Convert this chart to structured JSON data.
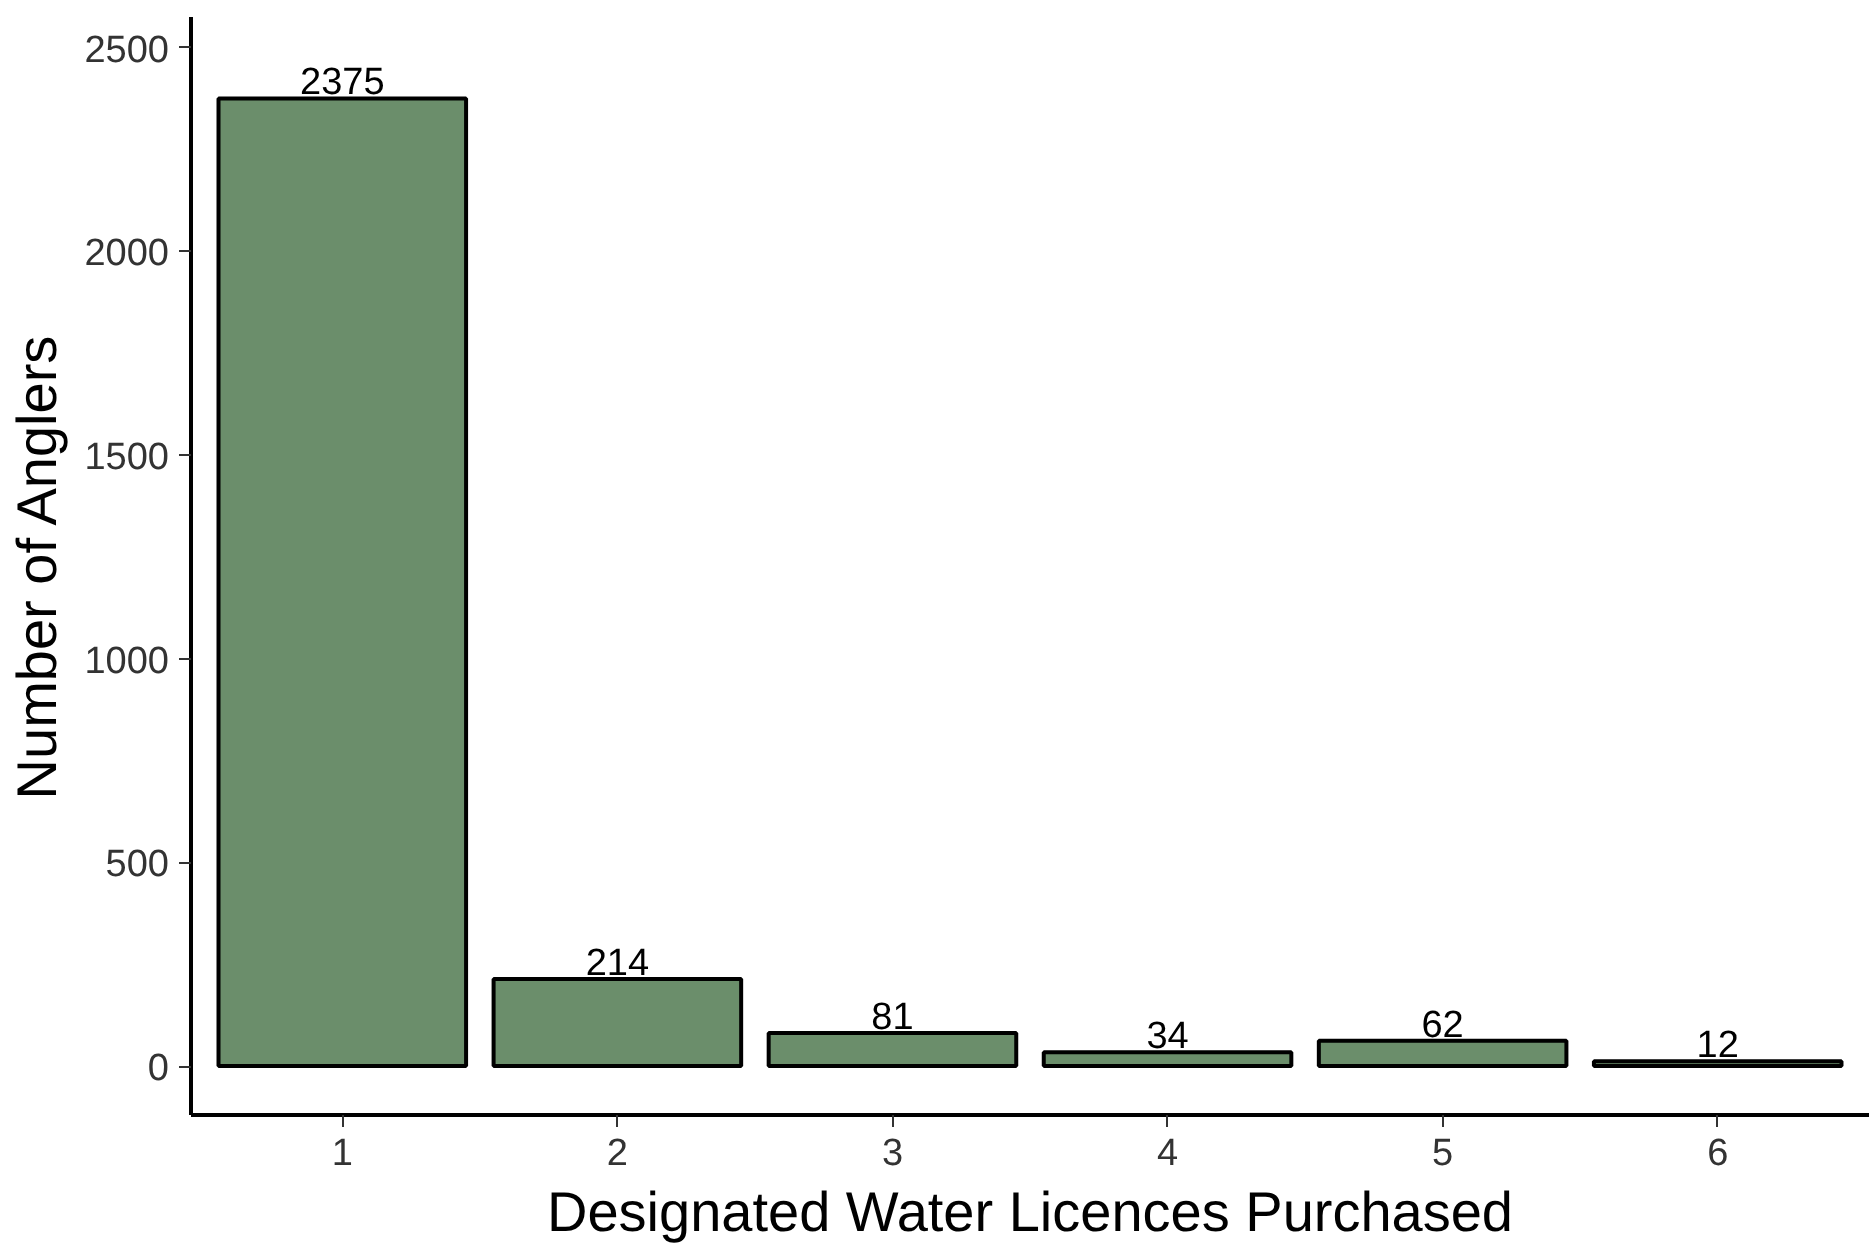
{
  "chart_data": {
    "type": "bar",
    "xlabel": "Designated Water Licences Purchased",
    "ylabel": "Number of Anglers",
    "categories": [
      "1",
      "2",
      "3",
      "4",
      "5",
      "6"
    ],
    "values": [
      2375,
      214,
      81,
      34,
      62,
      12
    ],
    "color": "#6b8e6b",
    "ylim": [
      -120,
      2575
    ],
    "yticks": [
      0,
      500,
      1000,
      1500,
      2000,
      2500
    ],
    "data_labels": true
  }
}
